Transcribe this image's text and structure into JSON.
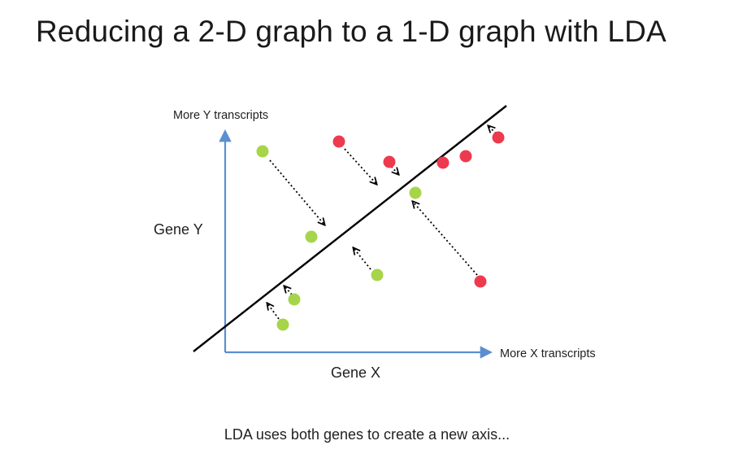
{
  "title": "Reducing a 2-D graph to a 1-D graph with LDA",
  "caption": "LDA uses both genes to create a new axis...",
  "axes": {
    "y_top_label": "More Y transcripts",
    "x_right_label": "More X transcripts",
    "y_name": "Gene Y",
    "x_name": "Gene X"
  },
  "colors": {
    "axis": "#5b8fd0",
    "green": "#a6d54a",
    "red": "#ee3a4f",
    "line": "#000000"
  },
  "points": [
    {
      "group": "green",
      "projected": "down"
    },
    {
      "group": "green",
      "projected": "on-line"
    },
    {
      "group": "green",
      "projected": "up"
    },
    {
      "group": "green",
      "projected": "up"
    },
    {
      "group": "green",
      "projected": "on-line"
    },
    {
      "group": "green",
      "projected": "up"
    },
    {
      "group": "red",
      "projected": "down"
    },
    {
      "group": "red",
      "projected": "down"
    },
    {
      "group": "red",
      "projected": "on-line"
    },
    {
      "group": "red",
      "projected": "on-line"
    },
    {
      "group": "red",
      "projected": "up"
    },
    {
      "group": "red",
      "projected": "up"
    }
  ]
}
